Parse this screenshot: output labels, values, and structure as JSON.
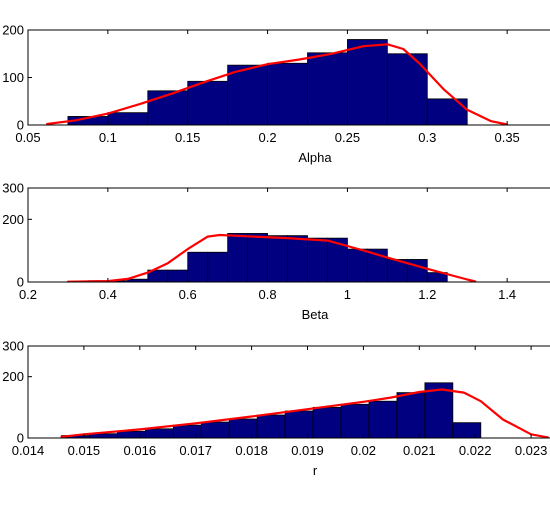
{
  "chart_data": [
    {
      "type": "bar",
      "xlabel": "Alpha",
      "ylabel": "",
      "xlim": [
        0.05,
        0.4
      ],
      "ylim": [
        0,
        200
      ],
      "xticks": [
        "0.05",
        "0.1",
        "0.15",
        "0.2",
        "0.25",
        "0.3",
        "0.35"
      ],
      "yticks": [
        "0",
        "100",
        "200"
      ],
      "bar_color": "#000080",
      "curve_color": "#ff0000",
      "bin_edges": [
        0.075,
        0.1,
        0.125,
        0.15,
        0.175,
        0.2,
        0.225,
        0.25,
        0.275,
        0.3,
        0.325
      ],
      "values": [
        18,
        26,
        72,
        92,
        126,
        130,
        152,
        180,
        150,
        55
      ],
      "curve": {
        "x": [
          0.062,
          0.08,
          0.1,
          0.12,
          0.14,
          0.16,
          0.18,
          0.2,
          0.22,
          0.24,
          0.26,
          0.275,
          0.285,
          0.295,
          0.31,
          0.325,
          0.34,
          0.35
        ],
        "y": [
          2,
          10,
          24,
          44,
          66,
          90,
          112,
          128,
          138,
          150,
          166,
          170,
          160,
          130,
          76,
          32,
          8,
          1
        ]
      }
    },
    {
      "type": "bar",
      "xlabel": "Beta",
      "ylabel": "",
      "xlim": [
        0.2,
        1.6
      ],
      "ylim": [
        0,
        300
      ],
      "xticks": [
        "0.2",
        "0.4",
        "0.6",
        "0.8",
        "1",
        "1.2",
        "1.4"
      ],
      "yticks": [
        "0",
        "200",
        "300"
      ],
      "bar_color": "#000080",
      "curve_color": "#ff0000",
      "bin_edges": [
        0.3,
        0.35,
        0.4,
        0.45,
        0.5,
        0.55,
        0.6,
        0.65,
        0.7,
        0.75,
        0.8,
        0.85,
        0.9,
        0.95,
        1.0,
        1.05,
        1.1,
        1.15,
        1.2,
        1.25
      ],
      "values": [
        2,
        4,
        4,
        9,
        38,
        38,
        95,
        95,
        155,
        155,
        148,
        148,
        140,
        140,
        105,
        105,
        72,
        72,
        30
      ],
      "curve": {
        "x": [
          0.3,
          0.4,
          0.45,
          0.5,
          0.55,
          0.6,
          0.65,
          0.68,
          0.75,
          0.85,
          0.95,
          1.0,
          1.05,
          1.1,
          1.2,
          1.3,
          1.32
        ],
        "y": [
          1,
          3,
          10,
          30,
          60,
          105,
          145,
          150,
          146,
          140,
          132,
          115,
          97,
          78,
          42,
          8,
          2
        ]
      }
    },
    {
      "type": "bar",
      "xlabel": "r",
      "ylabel": "",
      "xlim": [
        0.014,
        0.024
      ],
      "ylim": [
        0,
        300
      ],
      "xticks": [
        "0.014",
        "0.015",
        "0.016",
        "0.017",
        "0.018",
        "0.019",
        "0.02",
        "0.021",
        "0.022",
        "0.023"
      ],
      "yticks": [
        "0",
        "200",
        "300"
      ],
      "bar_color": "#000080",
      "curve_color": "#ff0000",
      "bin_edges": [
        0.0146,
        0.0151,
        0.0156,
        0.0161,
        0.0166,
        0.0171,
        0.0176,
        0.0181,
        0.0186,
        0.0191,
        0.0196,
        0.0201,
        0.0206,
        0.0211,
        0.0216,
        0.0221
      ],
      "values": [
        8,
        14,
        22,
        30,
        42,
        52,
        62,
        75,
        88,
        100,
        110,
        120,
        148,
        180,
        50
      ],
      "curve": {
        "x": [
          0.0146,
          0.015,
          0.016,
          0.017,
          0.018,
          0.019,
          0.02,
          0.0205,
          0.021,
          0.0214,
          0.0218,
          0.0221,
          0.0225,
          0.023,
          0.0233
        ],
        "y": [
          4,
          12,
          28,
          48,
          70,
          94,
          118,
          132,
          150,
          158,
          148,
          120,
          60,
          12,
          2
        ]
      }
    }
  ]
}
